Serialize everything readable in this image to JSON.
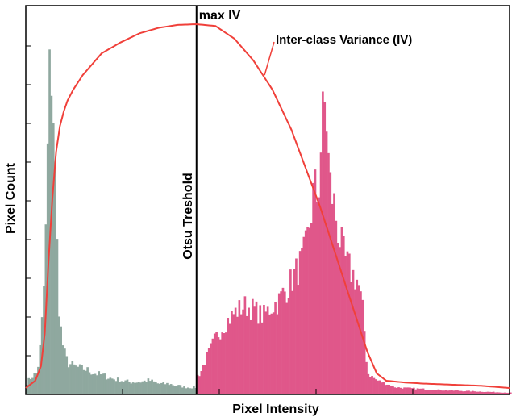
{
  "chart_data": {
    "type": "bar",
    "xlabel": "Pixel Intensity",
    "ylabel": "Pixel Count",
    "xlim": [
      0,
      255
    ],
    "ylim": [
      0,
      1
    ],
    "grid": false,
    "colors": {
      "background_class": "#8fa89f",
      "foreground_class": "#e0578a",
      "variance_curve": "#f0403a",
      "threshold_line": "#000000"
    },
    "threshold": {
      "x": 90,
      "label": "Otsu Treshold"
    },
    "max_annotation": {
      "label": "max IV"
    },
    "curve_annotation": {
      "label": "Inter-class Variance (IV)"
    },
    "histogram_anchors": {
      "description": "",
      "x": [
        0,
        3,
        6,
        8,
        10,
        11,
        12,
        13,
        14,
        15,
        16,
        17,
        18,
        20,
        22,
        25,
        28,
        32,
        36,
        40,
        45,
        50,
        55,
        60,
        65,
        70,
        75,
        80,
        85,
        89.9,
        90,
        92,
        95,
        100,
        105,
        110,
        115,
        120,
        125,
        130,
        133,
        135,
        138,
        140,
        143,
        146,
        148,
        150,
        152,
        154,
        156,
        158,
        160,
        162,
        165,
        168,
        170,
        172,
        175,
        178,
        180,
        185,
        190,
        195,
        200,
        210,
        220,
        230,
        240,
        250,
        255
      ],
      "y": [
        0.03,
        0.05,
        0.06,
        0.15,
        0.35,
        0.55,
        0.8,
        0.95,
        0.9,
        0.7,
        0.5,
        0.32,
        0.2,
        0.12,
        0.09,
        0.08,
        0.075,
        0.07,
        0.06,
        0.055,
        0.045,
        0.04,
        0.035,
        0.035,
        0.04,
        0.03,
        0.03,
        0.025,
        0.02,
        0.02,
        0.05,
        0.06,
        0.1,
        0.16,
        0.2,
        0.23,
        0.25,
        0.24,
        0.22,
        0.25,
        0.26,
        0.28,
        0.3,
        0.32,
        0.35,
        0.38,
        0.42,
        0.5,
        0.58,
        0.55,
        0.75,
        0.83,
        0.6,
        0.55,
        0.45,
        0.38,
        0.36,
        0.34,
        0.32,
        0.22,
        0.06,
        0.04,
        0.03,
        0.02,
        0.018,
        0.015,
        0.012,
        0.01,
        0.008,
        0.006,
        0.005
      ]
    },
    "variance_curve": {
      "x": [
        0,
        5,
        8,
        10,
        12,
        14,
        16,
        18,
        20,
        22,
        25,
        30,
        35,
        40,
        50,
        60,
        70,
        80,
        90,
        100,
        110,
        120,
        130,
        140,
        150,
        155,
        160,
        165,
        170,
        175,
        180,
        185,
        190,
        200,
        210,
        220,
        230,
        240,
        250,
        255
      ],
      "y": [
        0.0,
        0.02,
        0.06,
        0.15,
        0.35,
        0.52,
        0.65,
        0.72,
        0.76,
        0.79,
        0.82,
        0.86,
        0.89,
        0.92,
        0.95,
        0.975,
        0.99,
        0.998,
        1.0,
        0.995,
        0.96,
        0.9,
        0.82,
        0.71,
        0.57,
        0.5,
        0.42,
        0.34,
        0.26,
        0.18,
        0.1,
        0.04,
        0.02,
        0.015,
        0.012,
        0.01,
        0.008,
        0.006,
        0.002,
        0.0
      ]
    }
  }
}
